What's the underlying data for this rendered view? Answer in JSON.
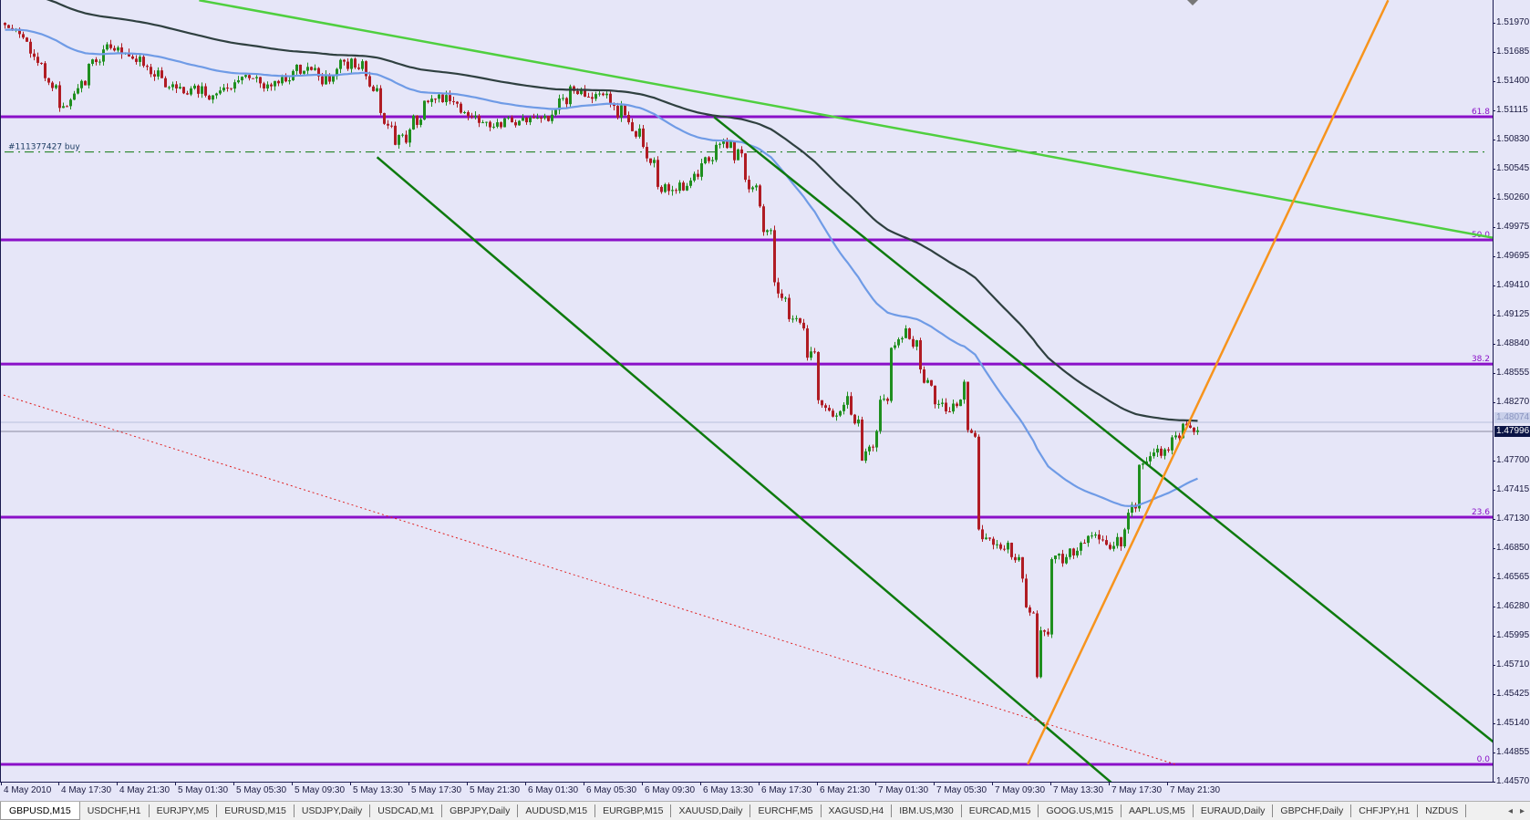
{
  "chart": {
    "symbol": "GBPUSD",
    "timeframe": "M15",
    "bid_price": "1.47996",
    "ask_price": "1.48074",
    "order_label": "#111377427 buy",
    "order_price": 1.5071,
    "colors": {
      "background": "#e6e6f8",
      "bull_candle": "#1f8f1f",
      "bear_candle": "#b01c24",
      "fib_level": "#8a10c8",
      "fast_ma": "#6f9be6",
      "slow_ma": "#2f4040",
      "trendline_light": "#4fcf3f",
      "trendline_dark": "#0e7a0e",
      "orange_line": "#f7941d",
      "red_dotted": "#e02020",
      "order_line": "#0e7a0e"
    }
  },
  "price_axis": {
    "labels": [
      "1.51970",
      "1.51685",
      "1.51400",
      "1.51115",
      "1.50830",
      "1.50545",
      "1.50260",
      "1.49975",
      "1.49695",
      "1.49410",
      "1.49125",
      "1.48840",
      "1.48555",
      "1.48270",
      "1.47700",
      "1.47415",
      "1.47130",
      "1.46850",
      "1.46565",
      "1.46280",
      "1.45995",
      "1.45710",
      "1.45425",
      "1.45140",
      "1.44855",
      "1.44570"
    ]
  },
  "time_axis": {
    "labels": [
      "4 May 2010",
      "4 May 17:30",
      "4 May 21:30",
      "5 May 01:30",
      "5 May 05:30",
      "5 May 09:30",
      "5 May 13:30",
      "5 May 17:30",
      "5 May 21:30",
      "6 May 01:30",
      "6 May 05:30",
      "6 May 09:30",
      "6 May 13:30",
      "6 May 17:30",
      "6 May 21:30",
      "7 May 01:30",
      "7 May 05:30",
      "7 May 09:30",
      "7 May 13:30",
      "7 May 17:30",
      "7 May 21:30"
    ]
  },
  "fibonacci": [
    {
      "label": "61.8",
      "price": 1.51054
    },
    {
      "label": "50.0",
      "price": 1.49853
    },
    {
      "label": "38.2",
      "price": 1.48643
    },
    {
      "label": "23.6",
      "price": 1.47149
    },
    {
      "label": "0.0",
      "price": 1.44739
    }
  ],
  "hourly_closes": [
    1.5191,
    1.5167,
    1.5143,
    1.5114,
    1.5128,
    1.5157,
    1.5171,
    1.5173,
    1.5162,
    1.5154,
    1.5143,
    1.5133,
    1.5133,
    1.5126,
    1.5131,
    1.5139,
    1.5143,
    1.5133,
    1.5138,
    1.515,
    1.5154,
    1.5137,
    1.5152,
    1.5162,
    1.5145,
    1.5109,
    1.5078,
    1.5093,
    1.5121,
    1.5127,
    1.512,
    1.5106,
    1.51,
    1.51,
    1.51,
    1.51,
    1.5104,
    1.5112,
    1.5135,
    1.5125,
    1.5128,
    1.5116,
    1.51,
    1.5076,
    1.5037,
    1.5034,
    1.5038,
    1.506,
    1.5078,
    1.5081,
    1.5044,
    1.5018,
    1.4944,
    1.4908,
    1.4899,
    1.4829,
    1.4813,
    1.4833,
    1.477,
    1.4799,
    1.488,
    1.4899,
    1.4859,
    1.4825,
    1.4818,
    1.4847,
    1.4703,
    1.4688,
    1.469,
    1.4655,
    1.4559,
    1.4674,
    1.4676,
    1.469,
    1.4698,
    1.4684,
    1.4703,
    1.4766,
    1.4778,
    1.478,
    1.4806,
    1.47996
  ],
  "trendlines": [
    {
      "name": "light-green-trendline",
      "color": "trendline_light",
      "from": {
        "hour": 13.4,
        "price": 1.5219
      },
      "to": {
        "hour": 104.9,
        "price": 1.498
      },
      "width": 2.5
    },
    {
      "name": "channel-upper-trendline",
      "color": "trendline_dark",
      "from": {
        "hour": 48.7,
        "price": 1.5105
      },
      "to": {
        "hour": 104.9,
        "price": 1.4464
      },
      "width": 2.5
    },
    {
      "name": "channel-lower-trendline",
      "color": "trendline_dark",
      "from": {
        "hour": 25.6,
        "price": 1.5066
      },
      "to": {
        "hour": 76.1,
        "price": 1.4454
      },
      "width": 2.5
    },
    {
      "name": "orange-trendline",
      "color": "orange_line",
      "from": {
        "hour": 70.2,
        "price": 1.4474
      },
      "to": {
        "hour": 94.9,
        "price": 1.5219
      },
      "width": 2.5
    },
    {
      "name": "red-dotted-trendline",
      "color": "red_dotted",
      "from": {
        "hour": 0,
        "price": 1.4834
      },
      "to": {
        "hour": 80.3,
        "price": 1.4474
      },
      "width": 1,
      "dotted": true
    }
  ],
  "tabs": [
    "GBPUSD,M15",
    "USDCHF,H1",
    "EURJPY,M5",
    "EURUSD,M15",
    "USDJPY,Daily",
    "USDCAD,M1",
    "GBPJPY,Daily",
    "AUDUSD,M15",
    "EURGBP,M15",
    "XAUUSD,Daily",
    "EURCHF,M5",
    "XAGUSD,H4",
    "IBM.US,M30",
    "EURCAD,M15",
    "GOOG.US,M15",
    "AAPL.US,M5",
    "EURAUD,Daily",
    "GBPCHF,Daily",
    "CHFJPY,H1",
    "NZDUS"
  ],
  "active_tab": 0,
  "tab_scroll": {
    "left": "◂",
    "right": "▸"
  }
}
